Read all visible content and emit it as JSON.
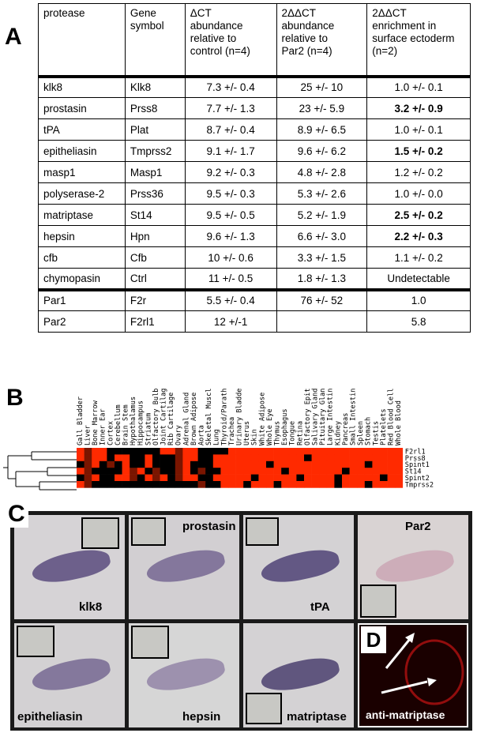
{
  "panel_labels": {
    "a": "A",
    "b": "B",
    "c": "C",
    "d": "D"
  },
  "table": {
    "headers": [
      {
        "l1": "protease",
        "l2": "",
        "l3": "",
        "l4": ""
      },
      {
        "l1": "Gene",
        "l2": "symbol",
        "l3": "",
        "l4": ""
      },
      {
        "l1": "ΔCT",
        "l2": "abundance",
        "l3": "relative to",
        "l4": "control (n=4)"
      },
      {
        "l1": "2ΔΔCT",
        "l2": "abundance",
        "l3": "relative to",
        "l4": "Par2 (n=4)"
      },
      {
        "l1": "2ΔΔCT",
        "l2": "enrichment in",
        "l3": "surface ectoderm",
        "l4": "(n=2)"
      }
    ],
    "rows": [
      [
        "klk8",
        "Klk8",
        "7.3 +/- 0.4",
        "25 +/- 10",
        "1.0 +/- 0.1"
      ],
      [
        "prostasin",
        "Prss8",
        "7.7 +/- 1.3",
        "23 +/- 5.9",
        "3.2 +/- 0.9"
      ],
      [
        "tPA",
        "Plat",
        "8.7 +/- 0.4",
        "8.9 +/- 6.5",
        "1.0 +/- 0.1"
      ],
      [
        "epitheliasin",
        "Tmprss2",
        "9.1 +/- 1.7",
        "9.6 +/- 6.2",
        "1.5 +/- 0.2"
      ],
      [
        "masp1",
        "Masp1",
        "9.2 +/- 0.3",
        "4.8 +/- 2.8",
        "1.2 +/- 0.2"
      ],
      [
        "polyserase-2",
        "Prss36",
        "9.5 +/- 0.3",
        "5.3 +/- 2.6",
        "1.0 +/- 0.0"
      ],
      [
        "matriptase",
        "St14",
        "9.5 +/- 0.5",
        "5.2 +/- 1.9",
        "2.5 +/- 0.2"
      ],
      [
        "hepsin",
        "Hpn",
        "9.6 +/- 1.3",
        "6.6 +/- 3.0",
        "2.2 +/- 0.3"
      ],
      [
        "cfb",
        "Cfb",
        "10 +/- 0.6",
        "3.3 +/- 1.5",
        "1.1 +/- 0.2"
      ],
      [
        "chymopasin",
        "Ctrl",
        "11 +/- 0.5",
        "1.8 +/- 1.3",
        "Undetectable"
      ],
      [
        "Par1",
        "F2r",
        "5.5 +/- 0.4",
        "76 +/- 52",
        "1.0"
      ],
      [
        "Par2",
        "F2rl1",
        "12 +/-1",
        "",
        "5.8"
      ]
    ]
  },
  "heatmap": {
    "tissues": [
      "Gall Bladder",
      "Liver",
      "Bone Marrow",
      "Inner Ear",
      "Cortex",
      "Cerebellum",
      "Brain Stem",
      "Hypothalamus",
      "Hippocampus",
      "Striatum",
      "Olfactory Bulb",
      "Joint Cartilage",
      "Rib Cartilage",
      "Ovary",
      "Adrenal Gland",
      "Brown Adipose Tissue",
      "Aorta",
      "Skeletal Muscle",
      "Lung",
      "Thyroid/Parathyroid",
      "Trachea",
      "Urinary Bladder",
      "Uterus",
      "Skin",
      "White Adipose Tissue",
      "Whole Eye",
      "Thymus",
      "Esophagus",
      "Tongue",
      "Retina",
      "Olfactory Epithelium",
      "Salivary Gland",
      "Pituitary Gland",
      "Large Intestine",
      "Kidney",
      "Pancreas",
      "Small Intestine",
      "Spleen",
      "Stomach",
      "Testis",
      "Platelets",
      "Red Blood Cells",
      "Whole Blood"
    ],
    "genes": [
      "F2rl1",
      "Prss8",
      "Spint1",
      "St14",
      "Spint2",
      "Tmprss2"
    ],
    "colors": {
      "high": "#ff2a00",
      "low": "#000000",
      "mid": "#7a1500"
    }
  },
  "images": [
    {
      "label": "klk8"
    },
    {
      "label": "prostasin"
    },
    {
      "label": "tPA"
    },
    {
      "label": "Par2"
    },
    {
      "label": "epitheliasin"
    },
    {
      "label": "hepsin"
    },
    {
      "label": "matriptase"
    },
    {
      "label": "anti-matriptase"
    }
  ]
}
